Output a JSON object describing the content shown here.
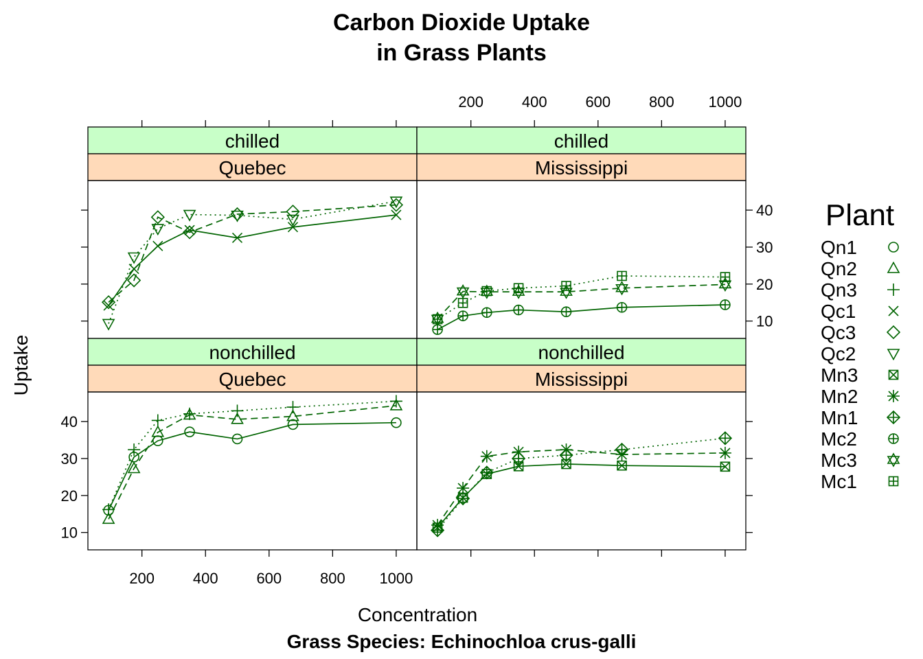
{
  "title_line1": "Carbon Dioxide Uptake",
  "title_line2": "in Grass Plants",
  "xlabel": "Concentration",
  "ylabel": "Uptake",
  "sublabel": "Grass Species: Echinochloa crus-galli",
  "legend_title": "Plant",
  "colors": {
    "series": "#006400",
    "strip_top": "#c8ffc8",
    "strip_bottom": "#ffdab9"
  },
  "chart_data": {
    "type": "line",
    "layout": "lattice 2x2, lines with point markers",
    "x_ticks": [
      200,
      400,
      600,
      800,
      1000
    ],
    "y_ticks": [
      10,
      20,
      30,
      40
    ],
    "xlim": [
      30,
      1065
    ],
    "ylim": [
      5.3,
      48
    ],
    "legend_placement": "right",
    "x": [
      95,
      175,
      250,
      350,
      500,
      675,
      1000
    ],
    "legend": [
      {
        "name": "Qn1",
        "marker": "circle"
      },
      {
        "name": "Qn2",
        "marker": "triangle-up"
      },
      {
        "name": "Qn3",
        "marker": "plus"
      },
      {
        "name": "Qc1",
        "marker": "cross"
      },
      {
        "name": "Qc3",
        "marker": "diamond"
      },
      {
        "name": "Qc2",
        "marker": "triangle-down"
      },
      {
        "name": "Mn3",
        "marker": "square-cross"
      },
      {
        "name": "Mn2",
        "marker": "asterisk"
      },
      {
        "name": "Mn1",
        "marker": "diamond-plus"
      },
      {
        "name": "Mc2",
        "marker": "circle-plus"
      },
      {
        "name": "Mc3",
        "marker": "star-of-david"
      },
      {
        "name": "Mc1",
        "marker": "square-plus"
      }
    ],
    "panels": [
      {
        "strip_top": "chilled",
        "strip_bottom": "Quebec",
        "series": [
          {
            "name": "Qc1",
            "marker": "cross",
            "dash": "",
            "values": [
              14.2,
              24.1,
              30.3,
              34.6,
              32.5,
              35.4,
              38.7
            ]
          },
          {
            "name": "Qc3",
            "marker": "diamond",
            "dash": "10,6",
            "values": [
              15.1,
              21.0,
              38.1,
              34.0,
              38.9,
              39.6,
              41.4
            ]
          },
          {
            "name": "Qc2",
            "marker": "triangle-down",
            "dash": "2,5",
            "values": [
              9.3,
              27.3,
              35.0,
              38.8,
              38.6,
              37.5,
              42.4
            ]
          }
        ]
      },
      {
        "strip_top": "chilled",
        "strip_bottom": "Mississippi",
        "series": [
          {
            "name": "Mc2",
            "marker": "circle-plus",
            "dash": "",
            "values": [
              7.7,
              11.4,
              12.3,
              13.0,
              12.5,
              13.7,
              14.4
            ]
          },
          {
            "name": "Mc3",
            "marker": "star-of-david",
            "dash": "10,6",
            "values": [
              10.6,
              18.0,
              17.9,
              17.9,
              17.9,
              18.9,
              19.9
            ]
          },
          {
            "name": "Mc1",
            "marker": "square-plus",
            "dash": "2,5",
            "values": [
              10.5,
              14.9,
              18.1,
              18.9,
              19.5,
              22.2,
              21.9
            ]
          }
        ]
      },
      {
        "strip_top": "nonchilled",
        "strip_bottom": "Quebec",
        "series": [
          {
            "name": "Qn1",
            "marker": "circle",
            "dash": "",
            "values": [
              16.0,
              30.4,
              34.8,
              37.2,
              35.3,
              39.2,
              39.7
            ]
          },
          {
            "name": "Qn2",
            "marker": "triangle-up",
            "dash": "10,6",
            "values": [
              13.6,
              27.3,
              37.1,
              41.8,
              40.6,
              41.4,
              44.3
            ]
          },
          {
            "name": "Qn3",
            "marker": "plus",
            "dash": "2,5",
            "values": [
              16.2,
              32.4,
              40.3,
              42.1,
              42.9,
              43.9,
              45.5
            ]
          }
        ]
      },
      {
        "strip_top": "nonchilled",
        "strip_bottom": "Mississippi",
        "series": [
          {
            "name": "Mn3",
            "marker": "square-cross",
            "dash": "",
            "values": [
              11.3,
              19.4,
              25.8,
              27.9,
              28.5,
              28.1,
              27.8
            ]
          },
          {
            "name": "Mn2",
            "marker": "asterisk",
            "dash": "10,6",
            "values": [
              12.0,
              22.0,
              30.6,
              31.8,
              32.4,
              31.1,
              31.5
            ]
          },
          {
            "name": "Mn1",
            "marker": "diamond-plus",
            "dash": "2,5",
            "values": [
              10.6,
              19.2,
              26.2,
              30.0,
              30.9,
              32.4,
              35.5
            ]
          }
        ]
      }
    ]
  }
}
